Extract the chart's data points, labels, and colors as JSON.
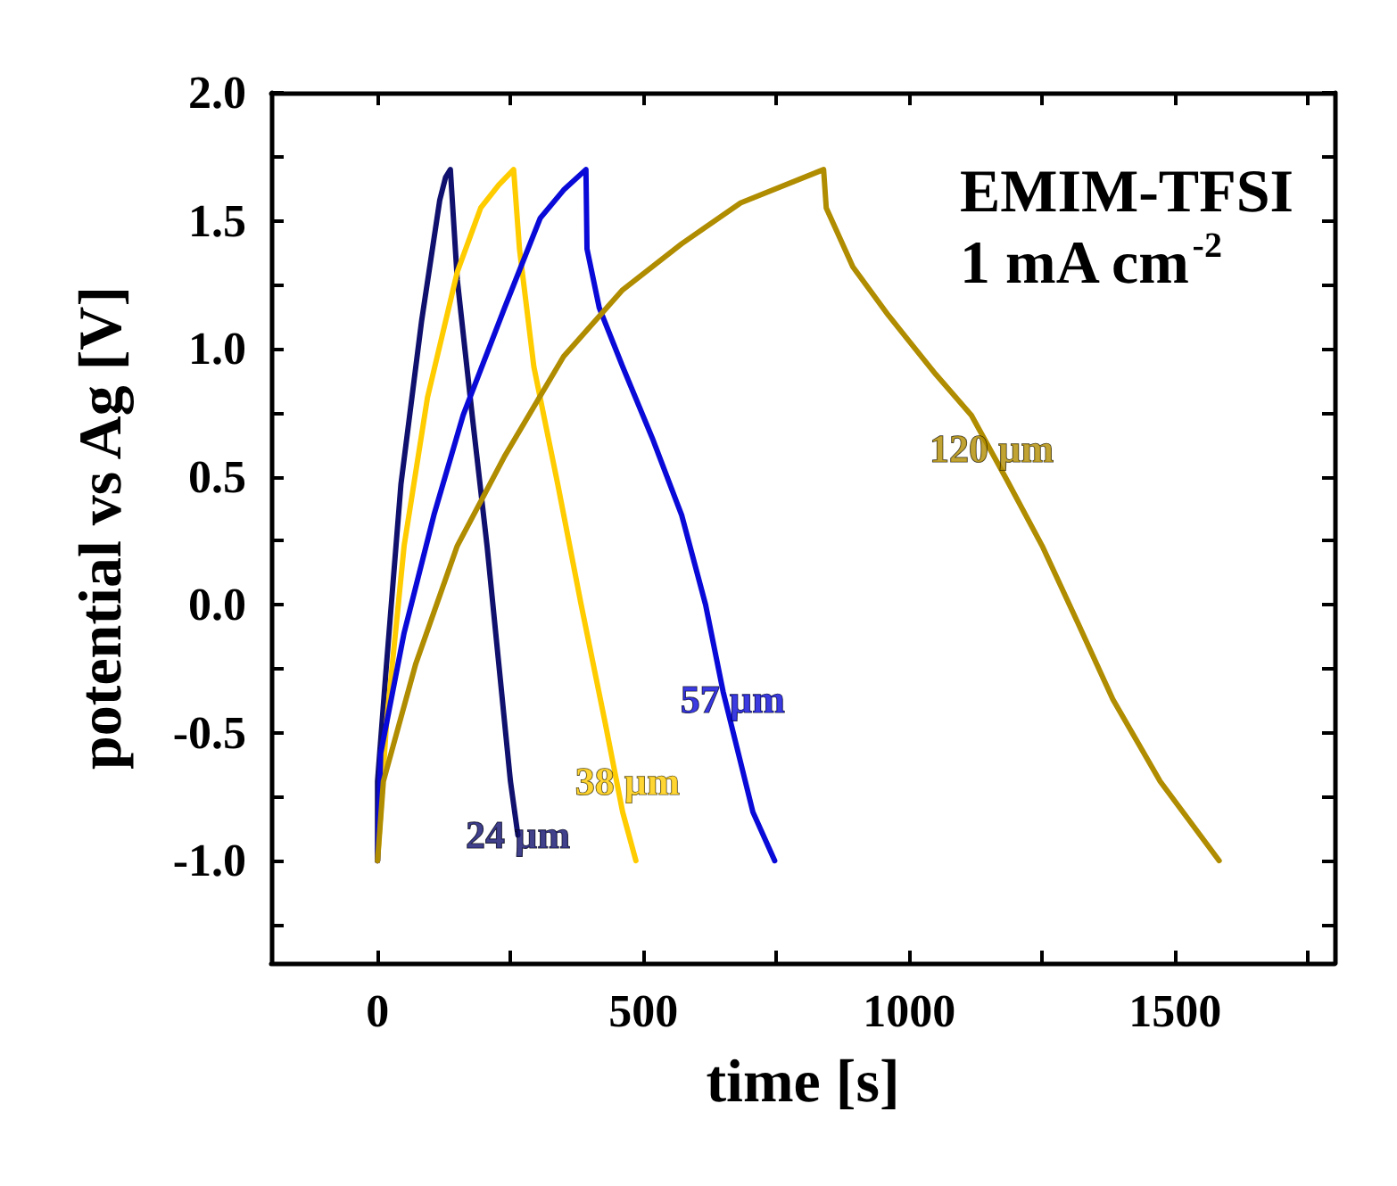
{
  "chart_data": {
    "type": "line",
    "xlabel": "time [s]",
    "ylabel": "potential vs Ag [V]",
    "xlim": [
      -200,
      1800
    ],
    "ylim": [
      -1.4,
      2.0
    ],
    "xticks": [
      0,
      {
        "value": 250,
        "label": null
      },
      500,
      {
        "value": 750,
        "label": null
      },
      1000,
      {
        "value": 1250,
        "label": null
      },
      1500,
      {
        "value": 1750,
        "label": null
      }
    ],
    "yticks": [
      {
        "value": -1.25,
        "label": null
      },
      {
        "value": -1.0,
        "label": "-1.0"
      },
      {
        "value": -0.75,
        "label": null
      },
      {
        "value": -0.5,
        "label": "-0.5"
      },
      {
        "value": -0.25,
        "label": null
      },
      {
        "value": 0,
        "label": "0.0"
      },
      {
        "value": 0.25,
        "label": null
      },
      {
        "value": 0.5,
        "label": "0.5"
      },
      {
        "value": 0.75,
        "label": null
      },
      {
        "value": 1.0,
        "label": "1.0"
      },
      {
        "value": 1.25,
        "label": null
      },
      {
        "value": 1.5,
        "label": "1.5"
      },
      {
        "value": 1.75,
        "label": null
      },
      {
        "value": 2.0,
        "label": "2.0"
      }
    ],
    "grid": false,
    "marker": "none",
    "line_style": "solid",
    "series": [
      {
        "color": "#10106e",
        "x": [
          0,
          0,
          17,
          44,
          83,
          117,
          128,
          137,
          150,
          178,
          206,
          228,
          250,
          264
        ],
        "values": [
          -1.0,
          -0.69,
          -0.23,
          0.47,
          1.11,
          1.58,
          1.67,
          1.7,
          1.27,
          0.74,
          0.23,
          -0.23,
          -0.69,
          -0.9
        ]
      },
      {
        "color": "#ffcc00",
        "x": [
          0,
          17,
          50,
          94,
          150,
          194,
          228,
          256,
          267,
          294,
          339,
          383,
          428,
          461,
          486
        ],
        "values": [
          -1.0,
          -0.46,
          0.23,
          0.81,
          1.3,
          1.55,
          1.64,
          1.7,
          1.39,
          0.93,
          0.47,
          0.0,
          -0.46,
          -0.81,
          -1.0
        ]
      },
      {
        "color": "#0a0ad8",
        "x": [
          0,
          6,
          50,
          106,
          161,
          239,
          306,
          350,
          392,
          394,
          417,
          461,
          517,
          572,
          617,
          650,
          706,
          747
        ],
        "values": [
          -1.0,
          -0.58,
          -0.11,
          0.35,
          0.74,
          1.16,
          1.51,
          1.62,
          1.7,
          1.39,
          1.16,
          0.93,
          0.65,
          0.35,
          0.0,
          -0.34,
          -0.81,
          -1.0
        ]
      },
      {
        "color": "#b08c00",
        "x": [
          0,
          11,
          72,
          150,
          239,
          350,
          461,
          572,
          683,
          839,
          844,
          894,
          961,
          1050,
          1117,
          1183,
          1250,
          1317,
          1383,
          1472,
          1583
        ],
        "values": [
          -1.0,
          -0.69,
          -0.23,
          0.23,
          0.58,
          0.97,
          1.23,
          1.41,
          1.57,
          1.7,
          1.55,
          1.32,
          1.13,
          0.9,
          0.74,
          0.49,
          0.23,
          -0.07,
          -0.37,
          -0.69,
          -1.0
        ]
      }
    ],
    "annotations": [
      {
        "text": "24 µm",
        "x": 264,
        "y": -0.9
      },
      {
        "text": "38 µm",
        "x": 470,
        "y": -0.69
      },
      {
        "text": "57 µm",
        "x": 668,
        "y": -0.37
      },
      {
        "text": "120 µm",
        "x": 1155,
        "y": 0.61
      },
      "EMIM-TFSI",
      "1 mA cm$^{-2}$"
    ]
  }
}
